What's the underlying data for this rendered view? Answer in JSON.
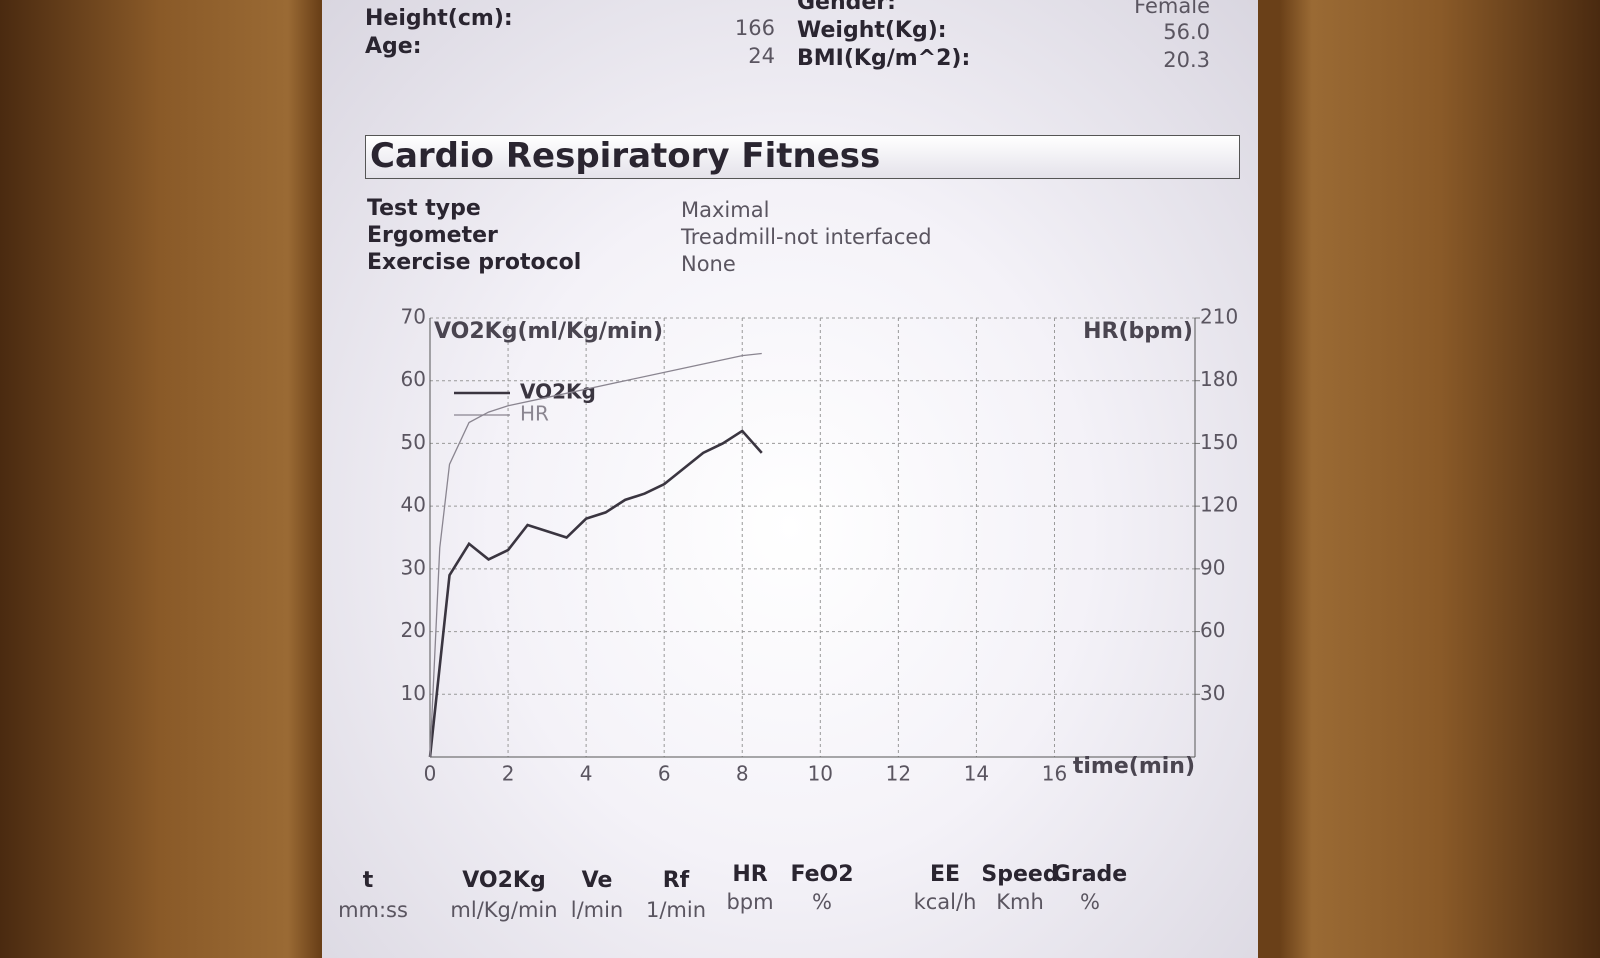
{
  "header": {
    "fields": [
      {
        "label": "Height(cm):",
        "value": "166"
      },
      {
        "label": "Age:",
        "value": "24"
      },
      {
        "label": "Gender:",
        "value": "Female"
      },
      {
        "label": "Weight(Kg):",
        "value": "56.0"
      },
      {
        "label": "BMI(Kg/m^2):",
        "value": "20.3"
      }
    ]
  },
  "section_title": "Cardio Respiratory Fitness",
  "test_info": [
    {
      "label": "Test type",
      "value": "Maximal"
    },
    {
      "label": "Ergometer",
      "value": "Treadmill-not interfaced"
    },
    {
      "label": "Exercise protocol",
      "value": "None"
    }
  ],
  "chart_data": {
    "type": "line",
    "y_label": "VO2Kg(ml/Kg/min)",
    "y2_label": "HR(bpm)",
    "x_label": "time(min)",
    "xlim": [
      0,
      19.6
    ],
    "xticks": [
      0,
      2,
      4,
      6,
      8,
      10,
      12,
      14,
      16
    ],
    "ylim": [
      0,
      70
    ],
    "yticks": [
      10,
      20,
      30,
      40,
      50,
      60,
      70
    ],
    "y2lim": [
      0,
      210
    ],
    "y2ticks": [
      30,
      60,
      90,
      120,
      150,
      180,
      210
    ],
    "grid": true,
    "legend": "upper left",
    "series": [
      {
        "name": "VO2Kg",
        "color": "#3a3540",
        "x": [
          0,
          0.5,
          1,
          1.5,
          2,
          2.5,
          3,
          3.5,
          4,
          4.5,
          5,
          5.5,
          6,
          6.5,
          7,
          7.5,
          8,
          8.5
        ],
        "values": [
          0,
          29,
          34,
          31.5,
          33,
          37,
          36,
          35,
          38,
          39,
          41,
          42,
          43.5,
          46,
          48.5,
          50,
          52,
          48.5
        ]
      },
      {
        "name": "HR",
        "color": "#8a8590",
        "axis": "y2",
        "x": [
          0,
          0.25,
          0.5,
          1,
          1.5,
          2,
          3,
          4,
          5,
          6,
          7,
          8,
          8.5
        ],
        "values": [
          0,
          100,
          140,
          160,
          165,
          168,
          172,
          176,
          180,
          184,
          188,
          192,
          193
        ]
      }
    ]
  },
  "results_table": {
    "columns": [
      {
        "name": "t",
        "unit": "mm:ss"
      },
      {
        "name": "VO2Kg",
        "unit": "ml/Kg/min"
      },
      {
        "name": "Ve",
        "unit": "l/min"
      },
      {
        "name": "Rf",
        "unit": "1/min"
      },
      {
        "name": "HR",
        "unit": "bpm"
      },
      {
        "name": "FeO2",
        "unit": "%"
      },
      {
        "name": "EE",
        "unit": "kcal/h"
      },
      {
        "name": "Speed",
        "unit": "Kmh"
      },
      {
        "name": "Grade",
        "unit": "%"
      }
    ]
  }
}
